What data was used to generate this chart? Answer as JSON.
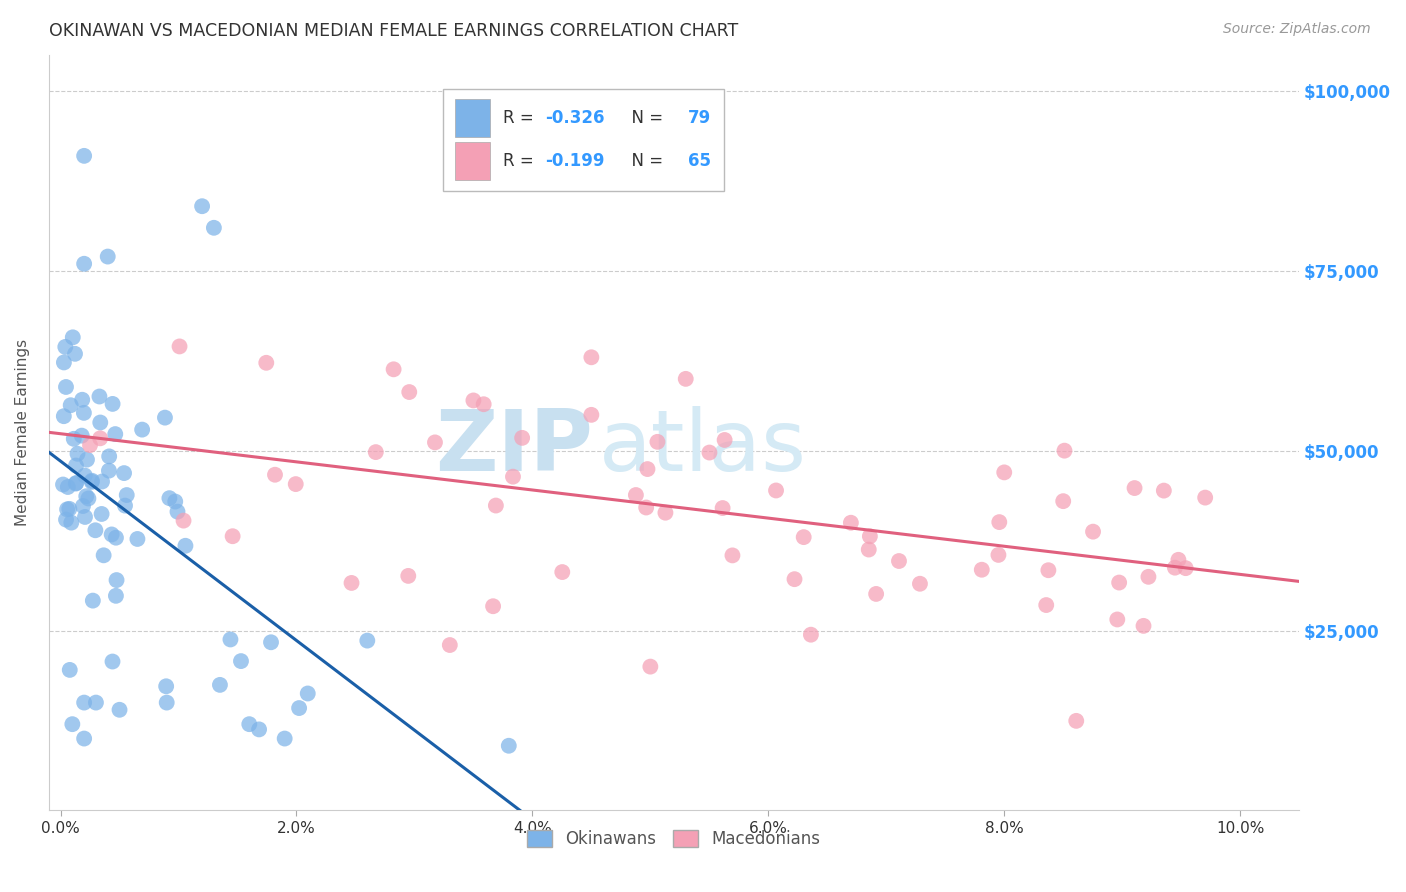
{
  "title": "OKINAWAN VS MACEDONIAN MEDIAN FEMALE EARNINGS CORRELATION CHART",
  "source": "Source: ZipAtlas.com",
  "ylabel": "Median Female Earnings",
  "xlabel_ticks": [
    "0.0%",
    "2.0%",
    "4.0%",
    "6.0%",
    "8.0%",
    "10.0%"
  ],
  "ytick_labels": [
    "$25,000",
    "$50,000",
    "$75,000",
    "$100,000"
  ],
  "ytick_values": [
    25000,
    50000,
    75000,
    100000
  ],
  "ylim": [
    0,
    105000
  ],
  "xlim": [
    -0.001,
    0.105
  ],
  "okinawan_color": "#7db3e8",
  "macedonian_color": "#f4a0b5",
  "okinawan_line_color": "#1a5fa8",
  "macedonian_line_color": "#e0607e",
  "legend_label1": "Okinawans",
  "legend_label2": "Macedonians",
  "title_color": "#333333",
  "axis_label_color": "#555555",
  "ytick_color": "#3399ff",
  "xtick_color": "#333333",
  "grid_color": "#cccccc",
  "watermark_zip": "ZIP",
  "watermark_atlas": "atlas",
  "watermark_color_zip": "#c8e0f0",
  "watermark_color_atlas": "#d5eaf5",
  "background_color": "#ffffff",
  "okinawan_R": "-0.326",
  "macedonian_R": "-0.199",
  "okinawan_N": "79",
  "macedonian_N": "65",
  "r_label_color": "#3399ff",
  "n_label_color": "#3399ff"
}
